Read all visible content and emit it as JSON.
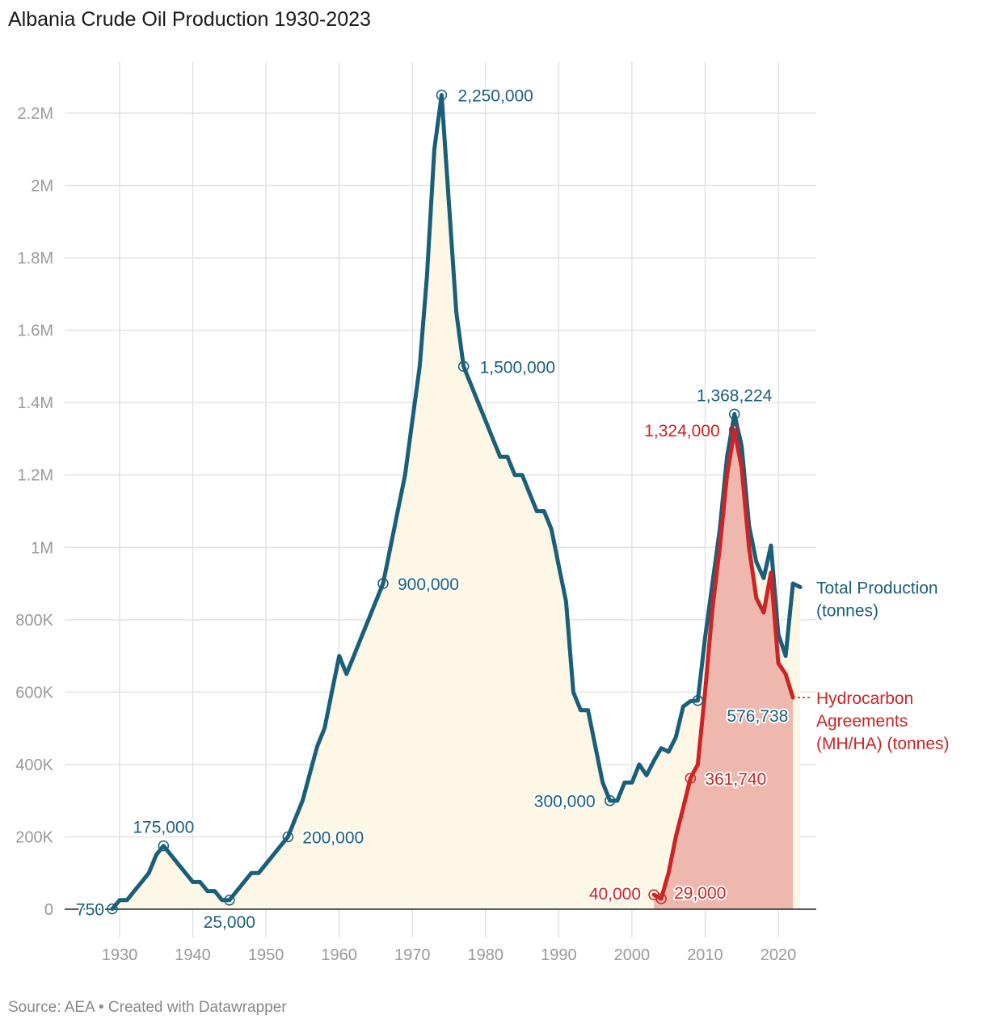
{
  "title": "Albania Crude Oil Production 1930-2023",
  "source": "Source: AEA • Created with Datawrapper",
  "colors": {
    "total": "#1a5f7a",
    "ha": "#cc2424",
    "total_fill": "#fdf8e6",
    "ha_fill": "#eeb8ae",
    "grid": "#e3e3e3",
    "axis": "#999999"
  },
  "chart_data": {
    "type": "area",
    "title": "Albania Crude Oil Production 1930-2023",
    "xlabel": "",
    "ylabel": "",
    "xlim": [
      1922,
      2025
    ],
    "ylim": [
      0,
      2300000
    ],
    "x_ticks": [
      1930,
      1940,
      1950,
      1960,
      1970,
      1980,
      1990,
      2000,
      2010,
      2020
    ],
    "x_tick_labels": [
      "1930",
      "1940",
      "1950",
      "1960",
      "1970",
      "1980",
      "1990",
      "2000",
      "2010",
      "2020"
    ],
    "y_ticks": [
      0,
      200000,
      400000,
      600000,
      800000,
      1000000,
      1200000,
      1400000,
      1600000,
      1800000,
      2000000,
      2200000
    ],
    "y_tick_labels": [
      "0",
      "200K",
      "400K",
      "600K",
      "800K",
      "1M",
      "1.2M",
      "1.4M",
      "1.6M",
      "1.8M",
      "2M",
      "2.2M"
    ],
    "grid": true,
    "series": [
      {
        "name": "Total Production (tonnes)",
        "label_lines": [
          "Total Production",
          "(tonnes)"
        ],
        "points": [
          [
            1929,
            750
          ],
          [
            1930,
            25000
          ],
          [
            1931,
            25000
          ],
          [
            1932,
            50000
          ],
          [
            1933,
            75000
          ],
          [
            1934,
            100000
          ],
          [
            1935,
            150000
          ],
          [
            1936,
            175000
          ],
          [
            1937,
            150000
          ],
          [
            1938,
            125000
          ],
          [
            1939,
            100000
          ],
          [
            1940,
            75000
          ],
          [
            1941,
            75000
          ],
          [
            1942,
            50000
          ],
          [
            1943,
            50000
          ],
          [
            1944,
            25000
          ],
          [
            1945,
            25000
          ],
          [
            1946,
            50000
          ],
          [
            1947,
            75000
          ],
          [
            1948,
            100000
          ],
          [
            1949,
            100000
          ],
          [
            1950,
            125000
          ],
          [
            1951,
            150000
          ],
          [
            1952,
            175000
          ],
          [
            1953,
            200000
          ],
          [
            1954,
            250000
          ],
          [
            1955,
            300000
          ],
          [
            1956,
            375000
          ],
          [
            1957,
            450000
          ],
          [
            1958,
            500000
          ],
          [
            1959,
            600000
          ],
          [
            1960,
            700000
          ],
          [
            1961,
            650000
          ],
          [
            1962,
            700000
          ],
          [
            1963,
            750000
          ],
          [
            1964,
            800000
          ],
          [
            1965,
            850000
          ],
          [
            1966,
            900000
          ],
          [
            1967,
            1000000
          ],
          [
            1968,
            1100000
          ],
          [
            1969,
            1200000
          ],
          [
            1970,
            1350000
          ],
          [
            1971,
            1500000
          ],
          [
            1972,
            1750000
          ],
          [
            1973,
            2100000
          ],
          [
            1974,
            2250000
          ],
          [
            1975,
            1950000
          ],
          [
            1976,
            1650000
          ],
          [
            1977,
            1500000
          ],
          [
            1978,
            1450000
          ],
          [
            1979,
            1400000
          ],
          [
            1980,
            1350000
          ],
          [
            1981,
            1300000
          ],
          [
            1982,
            1250000
          ],
          [
            1983,
            1250000
          ],
          [
            1984,
            1200000
          ],
          [
            1985,
            1200000
          ],
          [
            1986,
            1150000
          ],
          [
            1987,
            1100000
          ],
          [
            1988,
            1100000
          ],
          [
            1989,
            1050000
          ],
          [
            1990,
            950000
          ],
          [
            1991,
            850000
          ],
          [
            1992,
            600000
          ],
          [
            1993,
            550000
          ],
          [
            1994,
            550000
          ],
          [
            1995,
            450000
          ],
          [
            1996,
            350000
          ],
          [
            1997,
            300000
          ],
          [
            1998,
            300000
          ],
          [
            1999,
            350000
          ],
          [
            2000,
            350000
          ],
          [
            2001,
            400000
          ],
          [
            2002,
            370000
          ],
          [
            2003,
            410000
          ],
          [
            2004,
            445000
          ],
          [
            2005,
            435000
          ],
          [
            2006,
            475000
          ],
          [
            2007,
            560000
          ],
          [
            2008,
            575000
          ],
          [
            2009,
            576738
          ],
          [
            2010,
            750000
          ],
          [
            2011,
            900000
          ],
          [
            2012,
            1050000
          ],
          [
            2013,
            1250000
          ],
          [
            2014,
            1368224
          ],
          [
            2015,
            1280000
          ],
          [
            2016,
            1060000
          ],
          [
            2017,
            960000
          ],
          [
            2018,
            915000
          ],
          [
            2019,
            1005000
          ],
          [
            2020,
            760000
          ],
          [
            2021,
            700000
          ],
          [
            2022,
            900000
          ],
          [
            2023,
            890000
          ]
        ]
      },
      {
        "name": "Hydrocarbon Agreements (MH/HA) (tonnes)",
        "label_lines": [
          "Hydrocarbon",
          "Agreements",
          "(MH/HA) (tonnes)"
        ],
        "points": [
          [
            2003,
            40000
          ],
          [
            2004,
            29000
          ],
          [
            2005,
            100000
          ],
          [
            2006,
            200000
          ],
          [
            2007,
            280000
          ],
          [
            2008,
            361740
          ],
          [
            2009,
            400000
          ],
          [
            2010,
            600000
          ],
          [
            2011,
            830000
          ],
          [
            2012,
            1000000
          ],
          [
            2013,
            1200000
          ],
          [
            2014,
            1324000
          ],
          [
            2015,
            1220000
          ],
          [
            2016,
            1000000
          ],
          [
            2017,
            860000
          ],
          [
            2018,
            820000
          ],
          [
            2019,
            930000
          ],
          [
            2020,
            680000
          ],
          [
            2021,
            650000
          ],
          [
            2022,
            585000
          ]
        ]
      }
    ],
    "annotations": [
      {
        "series": 0,
        "x": 1974,
        "y": 2250000,
        "text": "2,250,000",
        "anchor": "start",
        "dx": 20,
        "dy": 8
      },
      {
        "series": 0,
        "x": 1977,
        "y": 1500000,
        "text": "1,500,000",
        "anchor": "start",
        "dx": 20,
        "dy": 8
      },
      {
        "series": 0,
        "x": 1966,
        "y": 900000,
        "text": "900,000",
        "anchor": "start",
        "dx": 18,
        "dy": 8
      },
      {
        "series": 0,
        "x": 1953,
        "y": 200000,
        "text": "200,000",
        "anchor": "start",
        "dx": 18,
        "dy": 8
      },
      {
        "series": 0,
        "x": 1936,
        "y": 175000,
        "text": "175,000",
        "anchor": "middle",
        "dx": 0,
        "dy": -16
      },
      {
        "series": 0,
        "x": 1945,
        "y": 25000,
        "text": "25,000",
        "anchor": "middle",
        "dx": 0,
        "dy": 34
      },
      {
        "series": 0,
        "x": 1929,
        "y": 750,
        "text": "750",
        "anchor": "end",
        "dx": -10,
        "dy": 8
      },
      {
        "series": 0,
        "x": 1997,
        "y": 300000,
        "text": "300,000",
        "anchor": "end",
        "dx": -18,
        "dy": 8
      },
      {
        "series": 0,
        "x": 2009,
        "y": 576738,
        "text": "576,738",
        "anchor": "middle",
        "dx": 74,
        "dy": 26
      },
      {
        "series": 0,
        "x": 2014,
        "y": 1368224,
        "text": "1,368,224",
        "anchor": "middle",
        "dx": 0,
        "dy": -16
      },
      {
        "series": 1,
        "x": 2014,
        "y": 1324000,
        "text": "1,324,000",
        "anchor": "end",
        "dx": -18,
        "dy": 8
      },
      {
        "series": 1,
        "x": 2008,
        "y": 361740,
        "text": "361,740",
        "anchor": "start",
        "dx": 18,
        "dy": 8
      },
      {
        "series": 1,
        "x": 2004,
        "y": 29000,
        "text": "29,000",
        "anchor": "start",
        "dx": 16,
        "dy": 0
      },
      {
        "series": 1,
        "x": 2003,
        "y": 40000,
        "text": "40,000",
        "anchor": "end",
        "dx": -16,
        "dy": 6
      }
    ]
  }
}
